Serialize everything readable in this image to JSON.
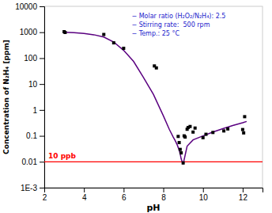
{
  "chart_data": {
    "type": "line",
    "xlabel": "pH",
    "ylabel": "Concentration of N₂H₄ [ppm]",
    "log": "y",
    "grid": false,
    "xlim": [
      2,
      13
    ],
    "xticks": [
      2,
      4,
      6,
      8,
      10,
      12
    ],
    "ylim": [
      0.001,
      10000
    ],
    "yticks": [
      {
        "value": 0.001,
        "label": "1E-3"
      },
      0.01,
      0.1,
      1,
      10,
      100,
      1000,
      10000
    ],
    "series": [
      {
        "type": "line",
        "color": "#5a0080",
        "x": [
          3.0,
          3.5,
          4.0,
          4.5,
          5.0,
          5.5,
          6.0,
          6.5,
          7.0,
          7.5,
          8.0,
          8.3,
          8.5,
          8.6,
          8.7,
          8.8,
          8.85,
          8.9,
          8.95,
          9.0
        ],
        "values": [
          1000,
          970,
          900,
          800,
          650,
          420,
          200,
          75,
          18,
          4.0,
          0.6,
          0.18,
          0.09,
          0.065,
          0.045,
          0.028,
          0.02,
          0.013,
          0.01,
          0.008
        ]
      },
      {
        "type": "line",
        "color": "#5a0080",
        "x": [
          9.0,
          9.2,
          9.5,
          10.0,
          10.5,
          11.0,
          11.5,
          12.0,
          12.2
        ],
        "values": [
          0.008,
          0.04,
          0.07,
          0.1,
          0.14,
          0.19,
          0.25,
          0.32,
          0.36
        ]
      },
      {
        "type": "scatter",
        "marker": "square",
        "color": "#000000",
        "x": [
          3.0,
          3.05,
          5.0,
          5.5,
          6.0,
          7.55,
          7.65,
          8.75,
          8.8,
          8.85,
          8.9,
          9.0,
          9.05,
          9.1,
          9.2,
          9.25,
          9.35,
          9.5,
          9.6,
          10.0,
          10.15,
          10.5,
          11.05,
          11.25,
          12.0,
          12.05,
          12.1
        ],
        "values": [
          1050,
          980,
          820,
          390,
          240,
          50,
          42,
          0.095,
          0.055,
          0.03,
          0.022,
          0.009,
          0.1,
          0.09,
          0.18,
          0.21,
          0.23,
          0.14,
          0.2,
          0.085,
          0.115,
          0.135,
          0.155,
          0.185,
          0.175,
          0.13,
          0.55
        ]
      }
    ],
    "reference_lines": [
      {
        "y": 0.01,
        "label": "10 ppb",
        "color": "#ff0000"
      }
    ],
    "annotations": [
      {
        "text": "− Molar ratio (H₂O₂/N₂H₄): 2.5",
        "color": "#2222cc"
      },
      {
        "text": "− Stirring rate:  500 rpm",
        "color": "#2222cc"
      },
      {
        "text": "− Temp.: 25 °C",
        "color": "#2222cc"
      }
    ]
  }
}
